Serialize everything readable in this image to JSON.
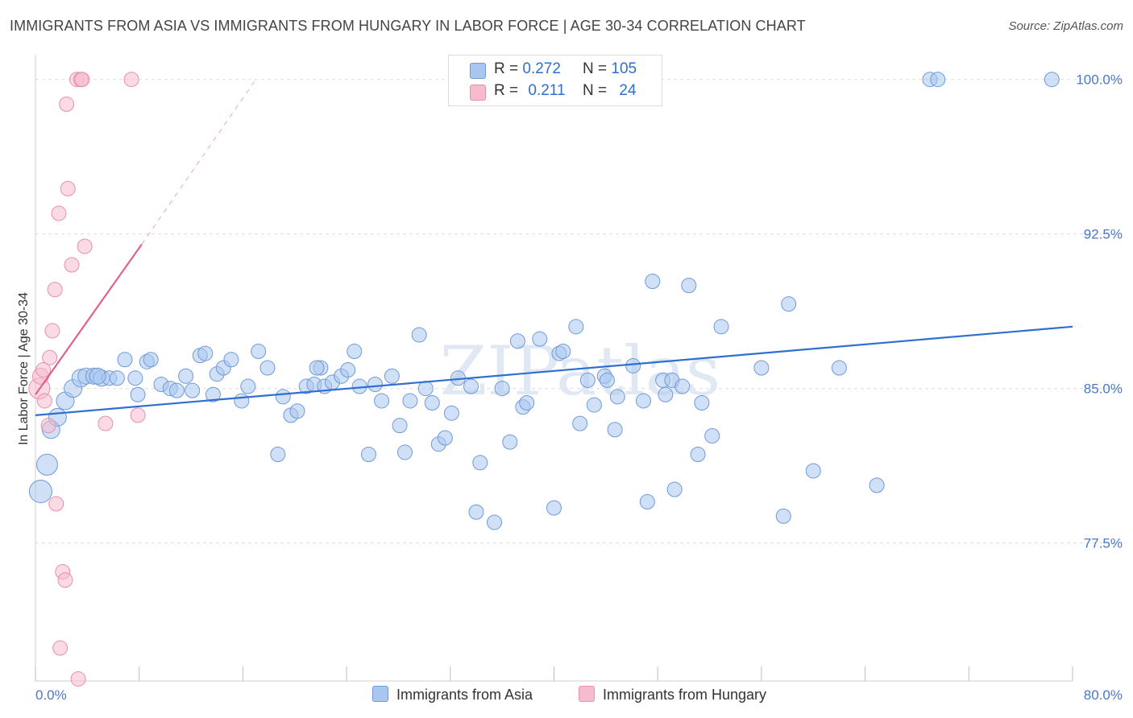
{
  "title": "IMMIGRANTS FROM ASIA VS IMMIGRANTS FROM HUNGARY IN LABOR FORCE | AGE 30-34 CORRELATION CHART",
  "source": "Source: ZipAtlas.com",
  "watermark": "ZIPatlas",
  "colors": {
    "asia_fill": "#a9c6f0",
    "asia_stroke": "#6f9ad8",
    "asia_line": "#2f6fcf",
    "hungary_fill": "#f6bccd",
    "hungary_stroke": "#e98fab",
    "hungary_line": "#e0618a",
    "tick_text": "#4a78c6",
    "grid": "#dddddd"
  },
  "legend": {
    "rows": [
      {
        "r_label": "R =",
        "r_value": "0.272",
        "n_label": "N =",
        "n_value": "105"
      },
      {
        "r_label": "R =",
        "r_value": "0.211",
        "n_label": "N =",
        "n_value": "24"
      }
    ]
  },
  "bottom_legend": {
    "asia": "Immigrants from Asia",
    "hungary": "Immigrants from Hungary"
  },
  "chart_data": {
    "type": "scatter",
    "xlabel": "",
    "ylabel": "In Labor Force | Age 30-34",
    "xlim": [
      0,
      80
    ],
    "ylim": [
      70.8,
      101.2
    ],
    "x_tick_labels": [
      "0.0%",
      "80.0%"
    ],
    "y_ticks": [
      77.5,
      85.0,
      92.5,
      100.0
    ],
    "y_tick_labels": [
      "77.5%",
      "85.0%",
      "92.5%",
      "100.0%"
    ],
    "grid": true,
    "series": [
      {
        "name": "Immigrants from Asia",
        "r": 0.272,
        "n": 105,
        "trend": {
          "x0": 0,
          "y0": 83.7,
          "x1": 80,
          "y1": 88.0
        },
        "points": [
          [
            0.4,
            80.0,
            14
          ],
          [
            0.9,
            81.3,
            13
          ],
          [
            1.2,
            83.0,
            11
          ],
          [
            1.7,
            83.6,
            11
          ],
          [
            2.3,
            84.4,
            11
          ],
          [
            2.9,
            85.0,
            11
          ],
          [
            3.5,
            85.5,
            11
          ],
          [
            3.9,
            85.6,
            10
          ],
          [
            4.5,
            85.6,
            10
          ],
          [
            5.1,
            85.5,
            10
          ],
          [
            5.7,
            85.5,
            9
          ],
          [
            6.3,
            85.5,
            9
          ],
          [
            6.9,
            86.4,
            9
          ],
          [
            7.7,
            85.5,
            9
          ],
          [
            7.9,
            84.7,
            9
          ],
          [
            8.6,
            86.3,
            9
          ],
          [
            8.9,
            86.4,
            9
          ],
          [
            9.7,
            85.2,
            9
          ],
          [
            10.4,
            85.0,
            9
          ],
          [
            10.9,
            84.9,
            9
          ],
          [
            11.6,
            85.6,
            9
          ],
          [
            12.1,
            84.9,
            9
          ],
          [
            12.7,
            86.6,
            9
          ],
          [
            13.1,
            86.7,
            9
          ],
          [
            13.7,
            84.7,
            9
          ],
          [
            14.0,
            85.7,
            9
          ],
          [
            14.5,
            86.0,
            9
          ],
          [
            15.1,
            86.4,
            9
          ],
          [
            15.9,
            84.4,
            9
          ],
          [
            16.4,
            85.1,
            9
          ],
          [
            17.2,
            86.8,
            9
          ],
          [
            17.9,
            86.0,
            9
          ],
          [
            18.7,
            81.8,
            9
          ],
          [
            19.1,
            84.6,
            9
          ],
          [
            19.7,
            83.7,
            9
          ],
          [
            20.2,
            83.9,
            9
          ],
          [
            20.9,
            85.1,
            9
          ],
          [
            21.5,
            85.2,
            9
          ],
          [
            22.0,
            86.0,
            9
          ],
          [
            22.3,
            85.1,
            9
          ],
          [
            22.9,
            85.3,
            9
          ],
          [
            23.6,
            85.6,
            9
          ],
          [
            21.7,
            86.0,
            9
          ],
          [
            24.1,
            85.9,
            9
          ],
          [
            24.6,
            86.8,
            9
          ],
          [
            25.0,
            85.1,
            9
          ],
          [
            25.7,
            81.8,
            9
          ],
          [
            26.2,
            85.2,
            9
          ],
          [
            26.7,
            84.4,
            9
          ],
          [
            27.5,
            85.6,
            9
          ],
          [
            28.1,
            83.2,
            9
          ],
          [
            28.5,
            81.9,
            9
          ],
          [
            28.9,
            84.4,
            9
          ],
          [
            29.6,
            87.6,
            9
          ],
          [
            30.1,
            85.0,
            9
          ],
          [
            30.6,
            84.3,
            9
          ],
          [
            31.1,
            82.3,
            9
          ],
          [
            31.6,
            82.6,
            9
          ],
          [
            32.1,
            83.8,
            9
          ],
          [
            32.6,
            85.5,
            9
          ],
          [
            33.6,
            85.1,
            9
          ],
          [
            34.0,
            79.0,
            9
          ],
          [
            34.3,
            81.4,
            9
          ],
          [
            35.4,
            78.5,
            9
          ],
          [
            36.0,
            85.0,
            9
          ],
          [
            36.6,
            82.4,
            9
          ],
          [
            37.2,
            87.3,
            9
          ],
          [
            37.6,
            84.1,
            9
          ],
          [
            37.9,
            84.3,
            9
          ],
          [
            38.9,
            87.4,
            9
          ],
          [
            40.0,
            79.2,
            9
          ],
          [
            40.4,
            86.7,
            9
          ],
          [
            40.7,
            86.8,
            9
          ],
          [
            41.7,
            88.0,
            9
          ],
          [
            42.0,
            83.3,
            9
          ],
          [
            42.6,
            85.4,
            9
          ],
          [
            43.1,
            84.2,
            9
          ],
          [
            43.9,
            85.6,
            9
          ],
          [
            44.1,
            85.4,
            9
          ],
          [
            44.7,
            83.0,
            9
          ],
          [
            44.9,
            84.6,
            9
          ],
          [
            46.1,
            86.1,
            9
          ],
          [
            46.9,
            84.4,
            9
          ],
          [
            47.2,
            79.5,
            9
          ],
          [
            47.6,
            90.2,
            9
          ],
          [
            48.4,
            85.4,
            9
          ],
          [
            48.6,
            84.7,
            9
          ],
          [
            49.1,
            85.4,
            9
          ],
          [
            49.3,
            80.1,
            9
          ],
          [
            49.9,
            85.1,
            9
          ],
          [
            50.4,
            90.0,
            9
          ],
          [
            51.1,
            81.8,
            9
          ],
          [
            51.4,
            84.3,
            9
          ],
          [
            52.2,
            82.7,
            9
          ],
          [
            52.9,
            88.0,
            9
          ],
          [
            56.0,
            86.0,
            9
          ],
          [
            57.7,
            78.8,
            9
          ],
          [
            58.1,
            89.1,
            9
          ],
          [
            60.0,
            81.0,
            9
          ],
          [
            62.0,
            86.0,
            9
          ],
          [
            64.9,
            80.3,
            9
          ],
          [
            69.0,
            100.0,
            9
          ],
          [
            69.6,
            100.0,
            9
          ],
          [
            78.4,
            100.0,
            9
          ],
          [
            4.8,
            85.6,
            10
          ]
        ]
      },
      {
        "name": "Immigrants from Hungary",
        "r": 0.211,
        "n": 24,
        "trend": {
          "x0": 0,
          "y0": 84.7,
          "x1": 8.2,
          "y1": 92.0
        },
        "trend_dashed": {
          "x0": 8.2,
          "y0": 92.0,
          "x1": 17.0,
          "y1": 100.0
        },
        "points": [
          [
            0.3,
            85.0,
            13
          ],
          [
            0.4,
            85.6,
            10
          ],
          [
            0.6,
            85.9,
            9
          ],
          [
            0.7,
            84.4,
            9
          ],
          [
            1.0,
            83.2,
            9
          ],
          [
            1.1,
            86.5,
            9
          ],
          [
            1.3,
            87.8,
            9
          ],
          [
            1.5,
            89.8,
            9
          ],
          [
            1.6,
            79.4,
            9
          ],
          [
            1.8,
            93.5,
            9
          ],
          [
            1.9,
            72.4,
            9
          ],
          [
            2.1,
            76.1,
            9
          ],
          [
            2.3,
            75.7,
            9
          ],
          [
            2.4,
            98.8,
            9
          ],
          [
            2.5,
            94.7,
            9
          ],
          [
            2.8,
            91.0,
            9
          ],
          [
            3.2,
            100.0,
            9
          ],
          [
            3.3,
            70.9,
            9
          ],
          [
            3.5,
            100.0,
            9
          ],
          [
            3.6,
            100.0,
            9
          ],
          [
            3.8,
            91.9,
            9
          ],
          [
            5.4,
            83.3,
            9
          ],
          [
            7.4,
            100.0,
            9
          ],
          [
            7.9,
            83.7,
            9
          ]
        ]
      }
    ]
  }
}
